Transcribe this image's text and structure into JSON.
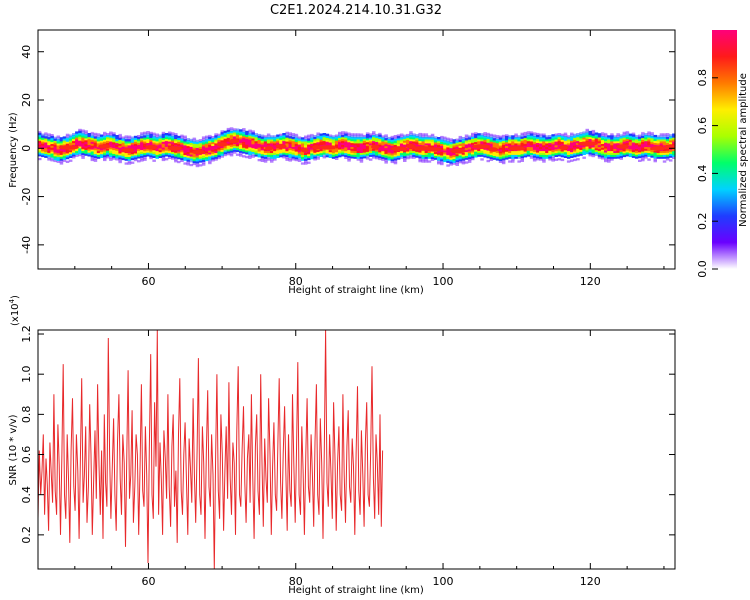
{
  "title": "C2E1.2024.214.10.31.G32",
  "chart_data": [
    {
      "type": "heatmap",
      "xlabel": "Height of straight line (km)",
      "ylabel": "Frequency (Hz)",
      "xlim": [
        45,
        131.5
      ],
      "ylim": [
        -50,
        49
      ],
      "xticks": [
        60,
        80,
        100,
        120
      ],
      "yticks": [
        40,
        20,
        0,
        -20,
        -40
      ],
      "colorbar": {
        "label": "Normalized spectral amplitude",
        "range": [
          0,
          1
        ],
        "ticks": [
          0.0,
          0.2,
          0.4,
          0.6,
          0.8
        ],
        "colormap": [
          "#ffffff",
          "#6a00ff",
          "#1f3dff",
          "#00d2ff",
          "#00ff6a",
          "#aaff00",
          "#ffee00",
          "#ff7a00",
          "#ff1a1a",
          "#ff007a"
        ]
      },
      "ridge": {
        "center_hz": [
          1,
          0,
          -1,
          0,
          2,
          1,
          0,
          1,
          0,
          -1,
          0,
          1,
          0,
          1,
          0,
          -1,
          -2,
          -1,
          0,
          2,
          3,
          2,
          1,
          0,
          0,
          1,
          0,
          -1,
          0,
          1,
          0,
          1,
          0,
          0,
          1,
          0,
          -1,
          0,
          1,
          0,
          0,
          -1,
          -2,
          -1,
          0,
          1,
          0,
          -1,
          0,
          0,
          1,
          0,
          0,
          1,
          0,
          1,
          2,
          1,
          0,
          0,
          1,
          0,
          1,
          0,
          0,
          1
        ],
        "center_x_start": 45,
        "center_x_step": 1.33,
        "half_width_hz": 4
      }
    },
    {
      "type": "line",
      "xlabel": "Height of straight line (km)",
      "ylabel": "SNR (10 * v/v)",
      "y_multiplier": "(x10",
      "y_multiplier_exp": "4",
      "y_multiplier_close": ")",
      "xlim": [
        45,
        131.5
      ],
      "ylim": [
        0.03,
        1.22
      ],
      "xticks": [
        60,
        80,
        100,
        120
      ],
      "yticks": [
        0.2,
        0.4,
        0.6,
        0.8,
        1.0,
        1.2
      ],
      "line_color": "#e8292b",
      "series": [
        {
          "x_start": 45,
          "x_step": 0.18,
          "values_x1e4": [
            0.28,
            0.62,
            0.4,
            0.52,
            0.7,
            0.3,
            0.58,
            0.45,
            0.22,
            0.66,
            0.5,
            0.36,
            0.9,
            0.42,
            0.3,
            0.75,
            0.55,
            0.2,
            0.6,
            1.05,
            0.4,
            0.28,
            0.7,
            0.48,
            0.16,
            0.62,
            0.88,
            0.44,
            0.32,
            0.7,
            0.52,
            0.18,
            0.58,
            0.98,
            0.36,
            0.5,
            0.74,
            0.26,
            0.44,
            0.85,
            0.6,
            0.2,
            0.48,
            0.72,
            0.38,
            0.95,
            0.55,
            0.3,
            0.62,
            0.18,
            0.8,
            0.46,
            0.34,
            1.18,
            0.6,
            0.28,
            0.52,
            0.78,
            0.4,
            0.22,
            0.66,
            0.9,
            0.48,
            0.3,
            0.7,
            0.56,
            0.14,
            0.6,
            1.02,
            0.38,
            0.5,
            0.82,
            0.26,
            0.44,
            0.7,
            0.6,
            0.2,
            0.55,
            0.95,
            0.42,
            0.34,
            0.74,
            0.5,
            0.06,
            0.62,
            1.1,
            0.4,
            0.28,
            0.86,
            0.54,
            1.22,
            0.3,
            0.66,
            0.48,
            0.2,
            0.72,
            0.58,
            0.38,
            0.9,
            0.44,
            0.24,
            0.64,
            0.8,
            0.34,
            0.52,
            0.16,
            0.7,
            0.98,
            0.42,
            0.3,
            0.6,
            0.76,
            0.46,
            0.2,
            0.68,
            0.54,
            0.36,
            0.88,
            0.5,
            0.26,
            0.62,
            1.08,
            0.4,
            0.3,
            0.74,
            0.56,
            0.18,
            0.6,
            0.92,
            0.44,
            0.34,
            0.7,
            0.5,
            0.03,
            0.58,
            1.0,
            0.42,
            0.28,
            0.8,
            0.6,
            0.22,
            0.52,
            0.74,
            0.38,
            0.96,
            0.48,
            0.3,
            0.66,
            0.56,
            0.2,
            0.72,
            1.04,
            0.4,
            0.34,
            0.62,
            0.84,
            0.46,
            0.26,
            0.58,
            0.7,
            0.36,
            0.9,
            0.5,
            0.18,
            0.64,
            0.8,
            0.42,
            0.3,
            1.0,
            0.56,
            0.24,
            0.68,
            0.48,
            0.36,
            0.88,
            0.6,
            0.2,
            0.54,
            0.76,
            0.4,
            0.32,
            0.66,
            0.98,
            0.46,
            0.28,
            0.6,
            0.84,
            0.5,
            0.22,
            0.7,
            0.42,
            0.34,
            0.9,
            0.56,
            0.26,
            0.62,
            1.06,
            0.4,
            0.3,
            0.74,
            0.52,
            0.2,
            0.6,
            0.88,
            0.44,
            0.36,
            0.7,
            0.5,
            0.24,
            0.66,
            0.95,
            0.4,
            0.3,
            0.78,
            0.56,
            0.18,
            0.62,
            1.22,
            0.46,
            0.34,
            0.7,
            0.52,
            0.28,
            0.86,
            0.6,
            0.22,
            0.56,
            0.74,
            0.4,
            0.32,
            0.9,
            0.5,
            0.26,
            0.64,
            0.82,
            0.44,
            0.36,
            0.68,
            0.54,
            0.2,
            0.6,
            0.94,
            0.42,
            0.3,
            0.72,
            0.5,
            0.24,
            0.66,
            0.86,
            0.4,
            0.34,
            0.62,
            1.04,
            0.48,
            0.28,
            0.7,
            0.56,
            0.3,
            0.8,
            0.24,
            0.62
          ]
        }
      ]
    }
  ],
  "colors": {
    "ridge_core": "#ff2a1a",
    "frame": "#000000"
  }
}
